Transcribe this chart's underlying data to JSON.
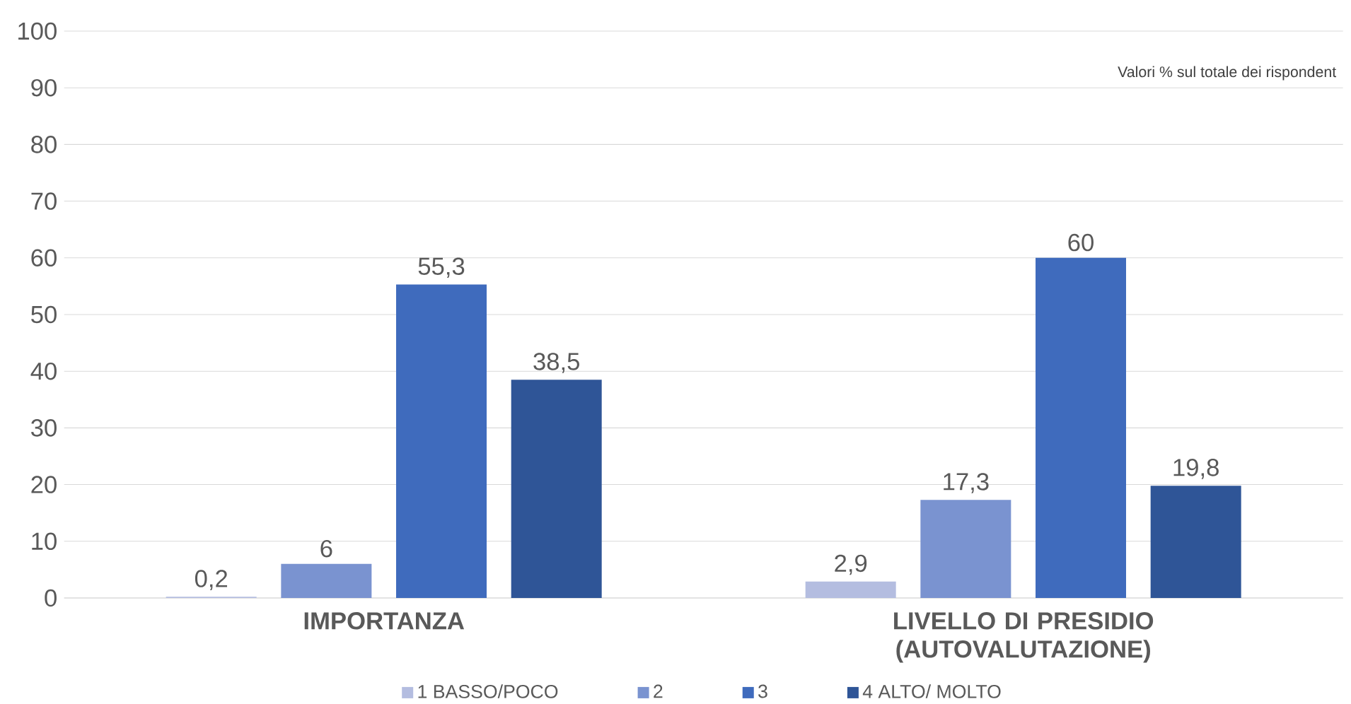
{
  "chart_data": {
    "type": "bar",
    "categories": [
      "IMPORTANZA",
      "LIVELLO DI PRESIDIO (AUTOVALUTAZIONE)"
    ],
    "series": [
      {
        "name": "1 BASSO/POCO",
        "color": "#b4bde0",
        "values": [
          0.2,
          2.9
        ],
        "value_labels": [
          "0,2",
          "2,9"
        ]
      },
      {
        "name": "2",
        "color": "#7a93d0",
        "values": [
          6,
          17.3
        ],
        "value_labels": [
          "6",
          "17,3"
        ]
      },
      {
        "name": "3",
        "color": "#3f6bbd",
        "values": [
          55.3,
          60
        ],
        "value_labels": [
          "55,3",
          "60"
        ]
      },
      {
        "name": "4 ALTO/ MOLTO",
        "color": "#2f5597",
        "values": [
          38.5,
          19.8
        ],
        "value_labels": [
          "38,5",
          "19,8"
        ]
      }
    ],
    "ylim": [
      0,
      100
    ],
    "yticks": [
      0,
      10,
      20,
      30,
      40,
      50,
      60,
      70,
      80,
      90,
      100
    ],
    "grid": "y",
    "legend": "bottom",
    "annotations": [
      "Valori % sul totale dei rispondent"
    ]
  }
}
